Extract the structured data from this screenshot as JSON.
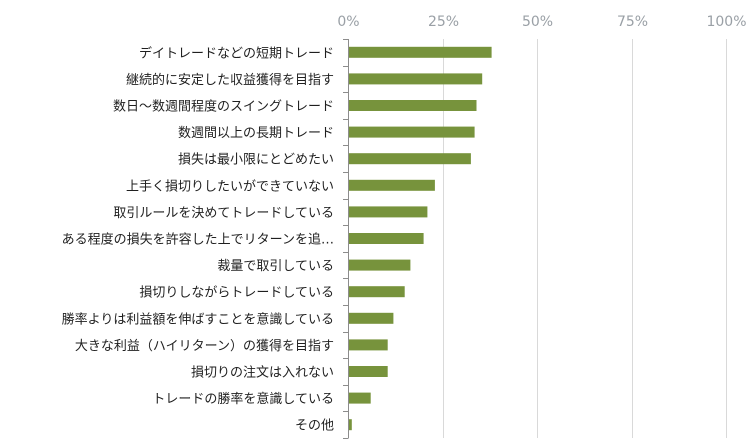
{
  "chart_data": {
    "type": "bar",
    "orientation": "horizontal",
    "title": "",
    "xlabel": "",
    "ylabel": "",
    "xlim": [
      0,
      100
    ],
    "x_ticks": [
      "0%",
      "25%",
      "50%",
      "75%",
      "100%"
    ],
    "grid": true,
    "bar_color": "#77933c",
    "categories": [
      "デイトレードなどの短期トレード",
      "継続的に安定した収益獲得を目指す",
      "数日～数週間程度のスイングトレード",
      "数週間以上の長期トレード",
      "損失は最小限にとどめたい",
      "上手く損切りしたいができていない",
      "取引ルールを決めてトレードしている",
      "ある程度の損失を許容した上でリターンを追…",
      "裁量で取引している",
      "損切りしながらトレードしている",
      "勝率よりは利益額を伸ばすことを意識している",
      "大きな利益（ハイリターン）の獲得を目指す",
      "損切りの注文は入れない",
      "トレードの勝率を意識している",
      "その他"
    ],
    "values": [
      38,
      35.5,
      34,
      33.5,
      32.5,
      23,
      21,
      20,
      16.5,
      15,
      12,
      10.5,
      10.5,
      6,
      1
    ]
  }
}
